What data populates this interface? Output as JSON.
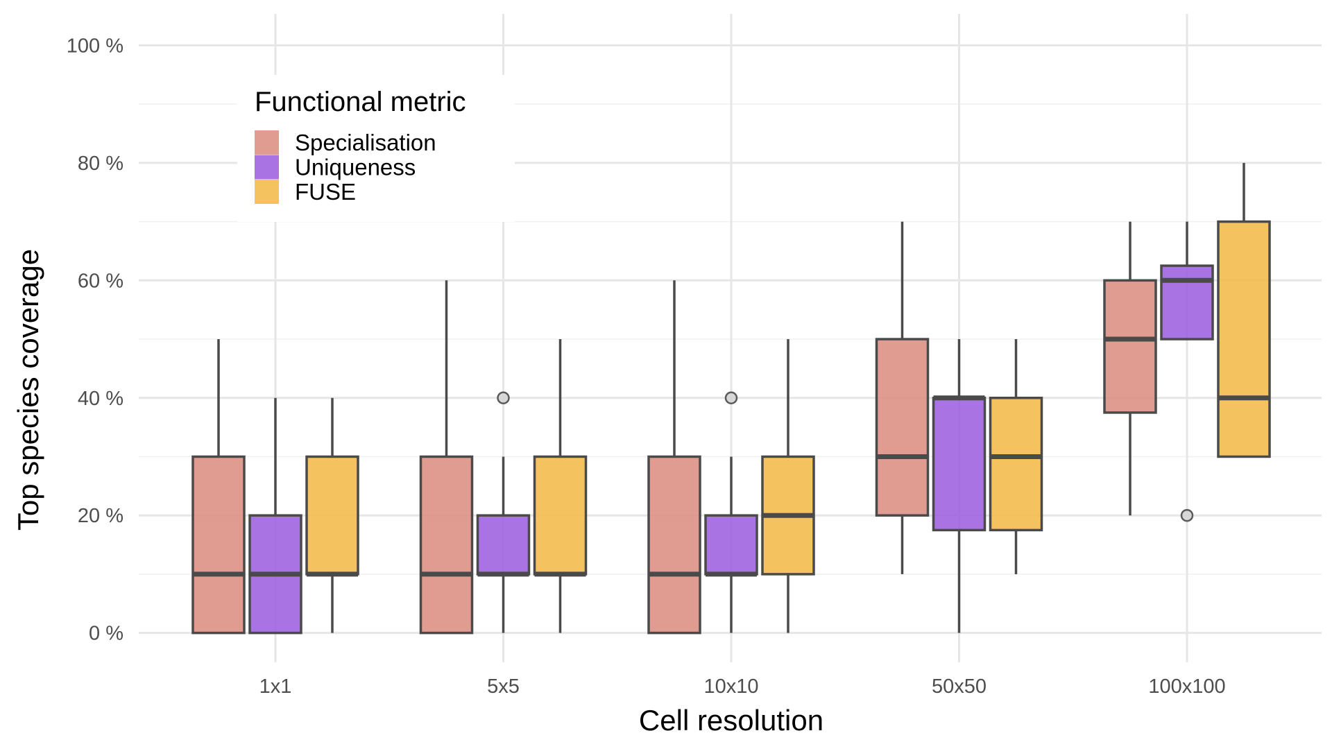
{
  "chart_data": {
    "type": "box",
    "xlabel": "Cell resolution",
    "ylabel": "Top species coverage",
    "categories": [
      "1x1",
      "5x5",
      "10x10",
      "50x50",
      "100x100"
    ],
    "ylim": [
      -5,
      103
    ],
    "y_ticks": [
      0,
      20,
      40,
      60,
      80,
      100
    ],
    "y_tick_labels": [
      "0 %",
      "20 %",
      "40 %",
      "60 %",
      "80 %",
      "100 %"
    ],
    "grid": true,
    "legend": {
      "title": "Functional metric",
      "placement": "top-left"
    },
    "series": [
      {
        "name": "Specialisation",
        "color": "#DA8B7C",
        "boxes": [
          {
            "min": 0,
            "q1": 0,
            "median": 10,
            "q3": 30,
            "max": 50,
            "outliers": []
          },
          {
            "min": 0,
            "q1": 0,
            "median": 10,
            "q3": 30,
            "max": 60,
            "outliers": []
          },
          {
            "min": 0,
            "q1": 0,
            "median": 10,
            "q3": 30,
            "max": 60,
            "outliers": []
          },
          {
            "min": 10,
            "q1": 20,
            "median": 30,
            "q3": 50,
            "max": 70,
            "outliers": []
          },
          {
            "min": 20,
            "q1": 37.5,
            "median": 50,
            "q3": 60,
            "max": 70,
            "outliers": []
          }
        ]
      },
      {
        "name": "Uniqueness",
        "color": "#9B5BDE",
        "boxes": [
          {
            "min": 0,
            "q1": 0,
            "median": 10,
            "q3": 20,
            "max": 40,
            "outliers": []
          },
          {
            "min": 0,
            "q1": 10,
            "median": 10,
            "q3": 20,
            "max": 30,
            "outliers": [
              40
            ]
          },
          {
            "min": 0,
            "q1": 10,
            "median": 10,
            "q3": 20,
            "max": 30,
            "outliers": [
              40
            ]
          },
          {
            "min": 0,
            "q1": 17.5,
            "median": 40,
            "q3": 40,
            "max": 50,
            "outliers": []
          },
          {
            "min": 50,
            "q1": 50,
            "median": 60,
            "q3": 62.5,
            "max": 70,
            "outliers": [
              20
            ]
          }
        ]
      },
      {
        "name": "FUSE",
        "color": "#F2B844",
        "boxes": [
          {
            "min": 0,
            "q1": 10,
            "median": 10,
            "q3": 30,
            "max": 40,
            "outliers": []
          },
          {
            "min": 0,
            "q1": 10,
            "median": 10,
            "q3": 30,
            "max": 50,
            "outliers": []
          },
          {
            "min": 0,
            "q1": 10,
            "median": 20,
            "q3": 30,
            "max": 50,
            "outliers": []
          },
          {
            "min": 10,
            "q1": 17.5,
            "median": 30,
            "q3": 40,
            "max": 50,
            "outliers": []
          },
          {
            "min": 30,
            "q1": 30,
            "median": 40,
            "q3": 70,
            "max": 80,
            "outliers": []
          }
        ]
      }
    ]
  }
}
